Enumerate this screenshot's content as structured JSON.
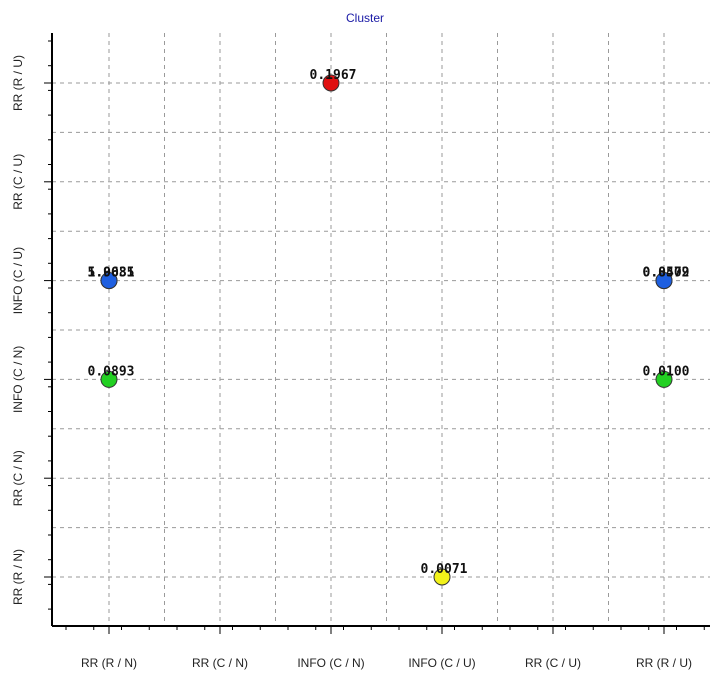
{
  "chart_data": {
    "type": "scatter",
    "title": "Cluster",
    "categories": [
      "RR (R / N)",
      "RR (C / N)",
      "INFO (C / N)",
      "INFO (C / U)",
      "RR (C / U)",
      "RR (R / U)"
    ],
    "x_tick_labels": [
      "RR (R / N)",
      "RR (C / N)",
      "INFO (C / N)",
      "INFO (C / U)",
      "RR (C / U)",
      "RR (R / U)"
    ],
    "y_tick_labels": [
      "RR (R / U)",
      "RR (C / U)",
      "INFO (C / U)",
      "INFO (C / N)",
      "RR (C / N)",
      "RR (R / N)"
    ],
    "grid": true,
    "points": [
      {
        "x": "INFO (C / N)",
        "y": "RR (R / U)",
        "label": "0.1967",
        "color": "#e01010"
      },
      {
        "x": "RR (R / N)",
        "y": "INFO (C / U)",
        "label": "5.9681",
        "color": "#1e5fe0"
      },
      {
        "x": "RR (R / N)",
        "y": "INFO (C / U)",
        "label": "1.0035",
        "color": "#1e5fe0"
      },
      {
        "x": "RR (R / U)",
        "y": "INFO (C / U)",
        "label": "0.8572",
        "color": "#1e5fe0"
      },
      {
        "x": "RR (R / U)",
        "y": "INFO (C / U)",
        "label": "0.0409",
        "color": "#1e5fe0"
      },
      {
        "x": "RR (R / N)",
        "y": "INFO (C / N)",
        "label": "0.0893",
        "color": "#22d022"
      },
      {
        "x": "RR (R / U)",
        "y": "INFO (C / N)",
        "label": "0.0100",
        "color": "#22d022"
      },
      {
        "x": "INFO (C / U)",
        "y": "RR (R / N)",
        "label": "0.0071",
        "color": "#f2f21a"
      }
    ]
  }
}
